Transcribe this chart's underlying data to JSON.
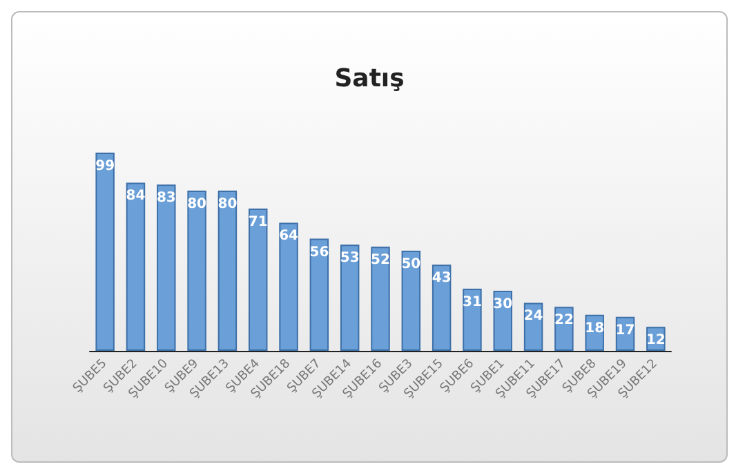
{
  "chart_data": {
    "type": "bar",
    "title": "Satış",
    "categories": [
      "ŞUBE5",
      "ŞUBE2",
      "ŞUBE10",
      "ŞUBE9",
      "ŞUBE13",
      "ŞUBE4",
      "ŞUBE18",
      "ŞUBE7",
      "ŞUBE14",
      "ŞUBE16",
      "ŞUBE3",
      "ŞUBE15",
      "ŞUBE6",
      "ŞUBE1",
      "ŞUBE11",
      "ŞUBE17",
      "ŞUBE8",
      "ŞUBE19",
      "ŞUBE12"
    ],
    "values": [
      99,
      84,
      83,
      80,
      80,
      71,
      64,
      56,
      53,
      52,
      50,
      43,
      31,
      30,
      24,
      22,
      18,
      17,
      12
    ],
    "color": "#6a9fd8",
    "data_labels": true
  }
}
